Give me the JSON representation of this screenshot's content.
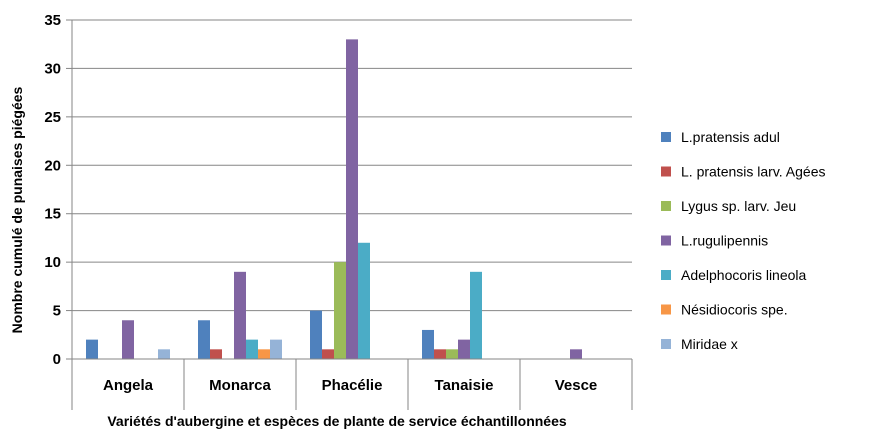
{
  "chart_data": {
    "type": "bar",
    "title": "",
    "xlabel": "Variétés d'aubergine et espèces de plante de service échantillonnées",
    "ylabel": "Nombre cumulé de punaises piégées",
    "ylim": [
      0,
      35
    ],
    "yticks": [
      "0",
      "5",
      "10",
      "15",
      "20",
      "25",
      "30",
      "35"
    ],
    "ytick_values": [
      0,
      5,
      10,
      15,
      20,
      25,
      30,
      35
    ],
    "grid": true,
    "legend_position": "right",
    "categories": [
      "Angela",
      "Monarca",
      "Phacélie",
      "Tanaisie",
      "Vesce"
    ],
    "series": [
      {
        "name": "L.pratensis adul",
        "color": "#4F81BD",
        "values": [
          2,
          4,
          5,
          3,
          0
        ]
      },
      {
        "name": "L. pratensis larv. Agées",
        "color": "#C0504D",
        "values": [
          0,
          1,
          1,
          1,
          0
        ]
      },
      {
        "name": "Lygus sp. larv. Jeu",
        "color": "#9BBB59",
        "values": [
          0,
          0,
          10,
          1,
          0
        ]
      },
      {
        "name": "L.rugulipennis",
        "color": "#8064A2",
        "values": [
          4,
          9,
          33,
          2,
          1
        ]
      },
      {
        "name": "Adelphocoris lineola",
        "color": "#4BACC6",
        "values": [
          0,
          2,
          12,
          9,
          0
        ]
      },
      {
        "name": "Nésidiocoris spe.",
        "color": "#F79646",
        "values": [
          0,
          1,
          0,
          0,
          0
        ]
      },
      {
        "name": "Miridae x",
        "color": "#95B3D7",
        "values": [
          1,
          2,
          0,
          0,
          0
        ]
      }
    ]
  }
}
